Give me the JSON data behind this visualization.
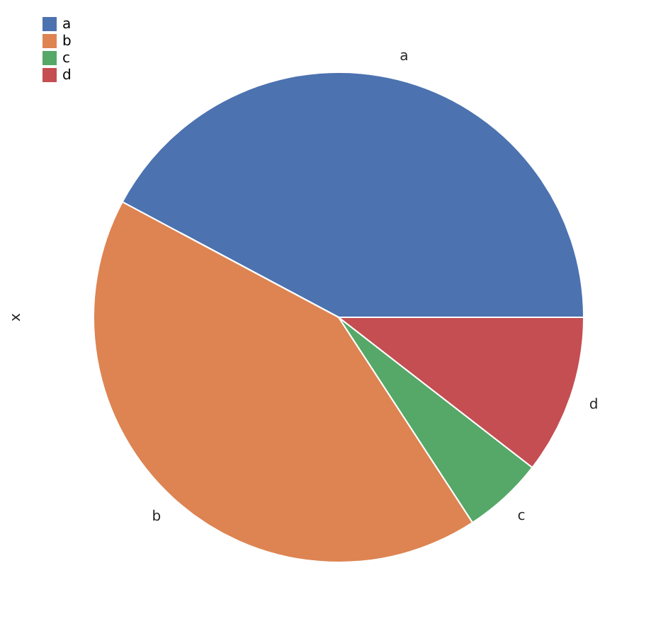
{
  "chart_data": {
    "type": "pie",
    "ylabel": "x",
    "categories": [
      "a",
      "b",
      "c",
      "d"
    ],
    "values": [
      42.2,
      42.0,
      5.3,
      10.5
    ],
    "colors": [
      "#4c72b0",
      "#dd8452",
      "#55a868",
      "#c44e52"
    ],
    "legend": "top left"
  }
}
